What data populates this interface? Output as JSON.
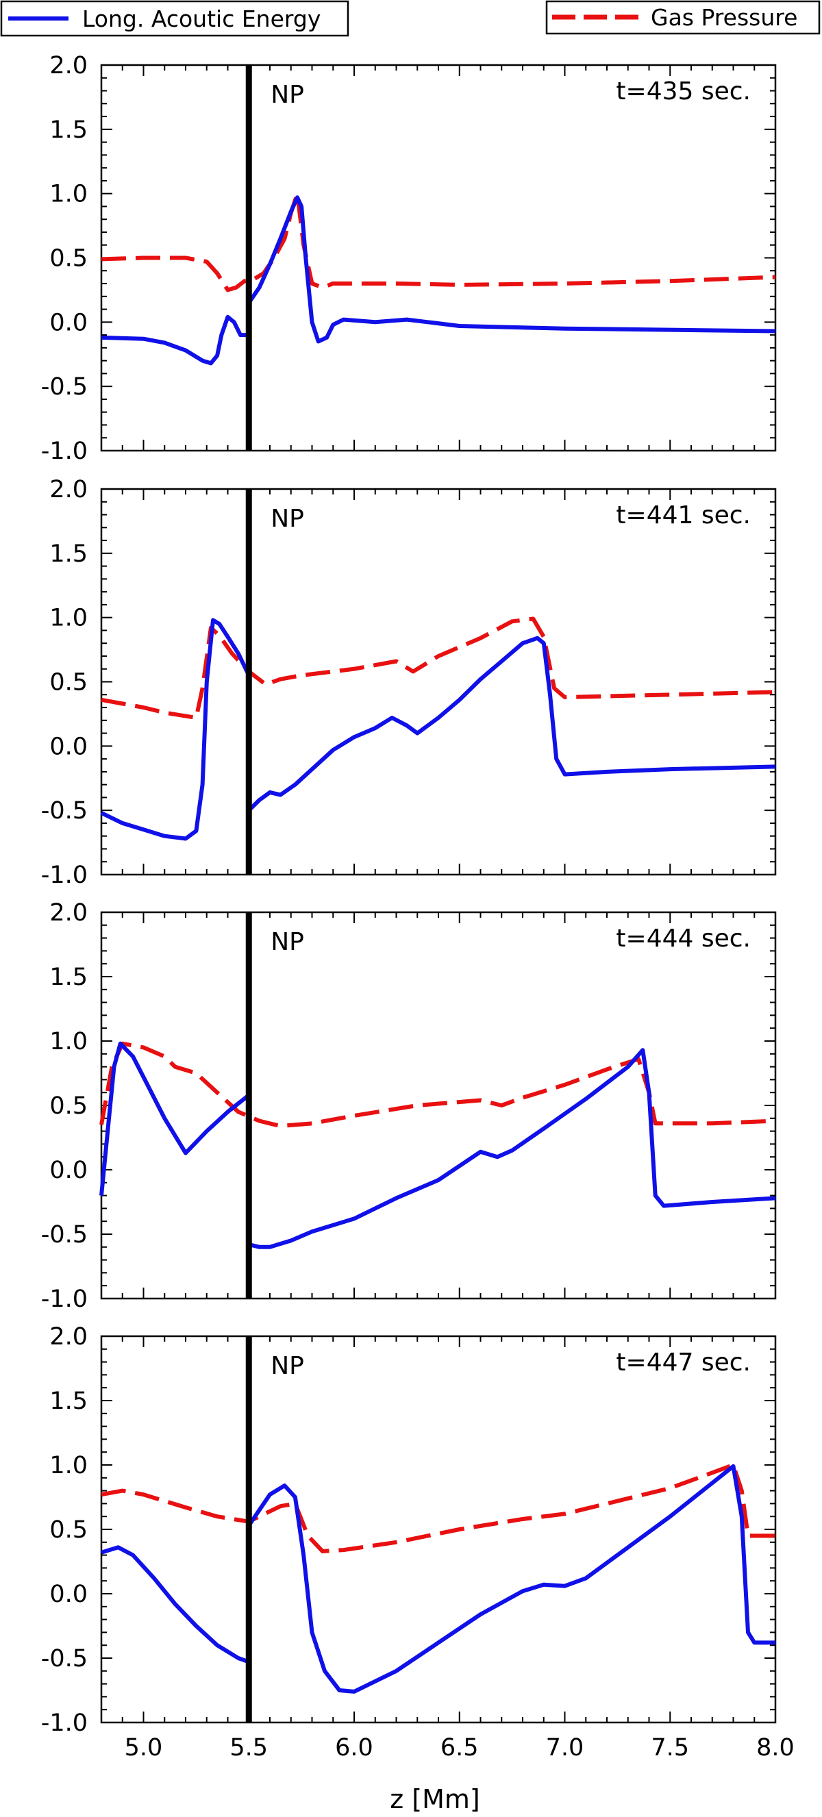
{
  "legend": {
    "blue_label": "Long. Acoutic Energy",
    "red_label": "Gas Pressure"
  },
  "xlabel": "z [Mm]",
  "colors": {
    "energy": "#1010e8",
    "pressure": "#e81010",
    "marker": "#000000"
  },
  "chart_data": [
    {
      "type": "line",
      "time_label": "t=435 sec.",
      "marker_label": "NP",
      "marker_x": 5.5,
      "xlim": [
        4.8,
        8.0
      ],
      "ylim": [
        -1.0,
        2.0
      ],
      "x_ticks": [
        5.0,
        5.5,
        6.0,
        6.5,
        7.0,
        7.5,
        8.0
      ],
      "y_ticks": [
        -1.0,
        -0.5,
        0.0,
        0.5,
        1.0,
        1.5,
        2.0
      ],
      "series": [
        {
          "name": "Long. Acoutic Energy",
          "style": "solid",
          "points": [
            [
              4.8,
              -0.12
            ],
            [
              5.0,
              -0.13
            ],
            [
              5.1,
              -0.16
            ],
            [
              5.2,
              -0.22
            ],
            [
              5.28,
              -0.3
            ],
            [
              5.32,
              -0.32
            ],
            [
              5.35,
              -0.26
            ],
            [
              5.37,
              -0.1
            ],
            [
              5.4,
              0.04
            ],
            [
              5.43,
              0.0
            ],
            [
              5.46,
              -0.1
            ],
            [
              5.5,
              -0.1
            ],
            [
              5.5,
              0.15
            ],
            [
              5.55,
              0.27
            ],
            [
              5.6,
              0.45
            ],
            [
              5.65,
              0.65
            ],
            [
              5.7,
              0.86
            ],
            [
              5.73,
              0.97
            ],
            [
              5.75,
              0.9
            ],
            [
              5.77,
              0.5
            ],
            [
              5.8,
              0.0
            ],
            [
              5.83,
              -0.15
            ],
            [
              5.87,
              -0.12
            ],
            [
              5.9,
              -0.02
            ],
            [
              5.95,
              0.02
            ],
            [
              6.1,
              0.0
            ],
            [
              6.25,
              0.02
            ],
            [
              6.35,
              0.0
            ],
            [
              6.5,
              -0.03
            ],
            [
              7.0,
              -0.05
            ],
            [
              7.5,
              -0.06
            ],
            [
              8.0,
              -0.07
            ]
          ]
        },
        {
          "name": "Gas Pressure",
          "style": "dashed",
          "points": [
            [
              4.8,
              0.49
            ],
            [
              5.0,
              0.5
            ],
            [
              5.2,
              0.5
            ],
            [
              5.3,
              0.47
            ],
            [
              5.35,
              0.38
            ],
            [
              5.4,
              0.25
            ],
            [
              5.44,
              0.27
            ],
            [
              5.48,
              0.32
            ],
            [
              5.52,
              0.33
            ],
            [
              5.57,
              0.38
            ],
            [
              5.62,
              0.5
            ],
            [
              5.67,
              0.65
            ],
            [
              5.7,
              0.85
            ],
            [
              5.73,
              1.0
            ],
            [
              5.76,
              0.6
            ],
            [
              5.8,
              0.3
            ],
            [
              5.85,
              0.27
            ],
            [
              5.9,
              0.3
            ],
            [
              6.2,
              0.3
            ],
            [
              6.5,
              0.29
            ],
            [
              7.0,
              0.3
            ],
            [
              7.5,
              0.32
            ],
            [
              8.0,
              0.35
            ]
          ]
        }
      ]
    },
    {
      "type": "line",
      "time_label": "t=441 sec.",
      "marker_label": "NP",
      "marker_x": 5.5,
      "xlim": [
        4.8,
        8.0
      ],
      "ylim": [
        -1.0,
        2.0
      ],
      "x_ticks": [
        5.0,
        5.5,
        6.0,
        6.5,
        7.0,
        7.5,
        8.0
      ],
      "y_ticks": [
        -1.0,
        -0.5,
        0.0,
        0.5,
        1.0,
        1.5,
        2.0
      ],
      "series": [
        {
          "name": "Long. Acoutic Energy",
          "style": "solid",
          "points": [
            [
              4.8,
              -0.52
            ],
            [
              4.9,
              -0.6
            ],
            [
              5.0,
              -0.65
            ],
            [
              5.1,
              -0.7
            ],
            [
              5.2,
              -0.72
            ],
            [
              5.25,
              -0.66
            ],
            [
              5.28,
              -0.3
            ],
            [
              5.3,
              0.5
            ],
            [
              5.33,
              0.98
            ],
            [
              5.36,
              0.95
            ],
            [
              5.4,
              0.85
            ],
            [
              5.45,
              0.72
            ],
            [
              5.5,
              0.55
            ],
            [
              5.5,
              -0.5
            ],
            [
              5.55,
              -0.42
            ],
            [
              5.6,
              -0.36
            ],
            [
              5.65,
              -0.38
            ],
            [
              5.72,
              -0.3
            ],
            [
              5.8,
              -0.18
            ],
            [
              5.9,
              -0.03
            ],
            [
              6.0,
              0.07
            ],
            [
              6.1,
              0.14
            ],
            [
              6.18,
              0.22
            ],
            [
              6.25,
              0.16
            ],
            [
              6.3,
              0.1
            ],
            [
              6.4,
              0.22
            ],
            [
              6.5,
              0.36
            ],
            [
              6.6,
              0.52
            ],
            [
              6.7,
              0.66
            ],
            [
              6.8,
              0.8
            ],
            [
              6.87,
              0.84
            ],
            [
              6.9,
              0.8
            ],
            [
              6.93,
              0.4
            ],
            [
              6.96,
              -0.1
            ],
            [
              7.0,
              -0.22
            ],
            [
              7.2,
              -0.2
            ],
            [
              7.5,
              -0.18
            ],
            [
              8.0,
              -0.16
            ]
          ]
        },
        {
          "name": "Gas Pressure",
          "style": "dashed",
          "points": [
            [
              4.8,
              0.36
            ],
            [
              5.0,
              0.3
            ],
            [
              5.1,
              0.26
            ],
            [
              5.25,
              0.22
            ],
            [
              5.28,
              0.45
            ],
            [
              5.32,
              0.92
            ],
            [
              5.36,
              0.86
            ],
            [
              5.42,
              0.72
            ],
            [
              5.5,
              0.58
            ],
            [
              5.58,
              0.48
            ],
            [
              5.65,
              0.52
            ],
            [
              5.75,
              0.55
            ],
            [
              6.0,
              0.6
            ],
            [
              6.2,
              0.66
            ],
            [
              6.28,
              0.58
            ],
            [
              6.4,
              0.7
            ],
            [
              6.6,
              0.84
            ],
            [
              6.75,
              0.97
            ],
            [
              6.85,
              0.99
            ],
            [
              6.9,
              0.85
            ],
            [
              6.95,
              0.45
            ],
            [
              7.0,
              0.38
            ],
            [
              7.5,
              0.4
            ],
            [
              8.0,
              0.42
            ]
          ]
        }
      ]
    },
    {
      "type": "line",
      "time_label": "t=444 sec.",
      "marker_label": "NP",
      "marker_x": 5.5,
      "xlim": [
        4.8,
        8.0
      ],
      "ylim": [
        -1.0,
        2.0
      ],
      "x_ticks": [
        5.0,
        5.5,
        6.0,
        6.5,
        7.0,
        7.5,
        8.0
      ],
      "y_ticks": [
        -1.0,
        -0.5,
        0.0,
        0.5,
        1.0,
        1.5,
        2.0
      ],
      "series": [
        {
          "name": "Long. Acoutic Energy",
          "style": "solid",
          "points": [
            [
              4.8,
              -0.2
            ],
            [
              4.83,
              0.3
            ],
            [
              4.86,
              0.8
            ],
            [
              4.89,
              0.98
            ],
            [
              4.95,
              0.88
            ],
            [
              5.0,
              0.72
            ],
            [
              5.1,
              0.4
            ],
            [
              5.2,
              0.13
            ],
            [
              5.3,
              0.3
            ],
            [
              5.4,
              0.45
            ],
            [
              5.5,
              0.58
            ],
            [
              5.5,
              -0.58
            ],
            [
              5.55,
              -0.6
            ],
            [
              5.6,
              -0.6
            ],
            [
              5.7,
              -0.55
            ],
            [
              5.8,
              -0.48
            ],
            [
              6.0,
              -0.38
            ],
            [
              6.2,
              -0.22
            ],
            [
              6.4,
              -0.08
            ],
            [
              6.6,
              0.14
            ],
            [
              6.68,
              0.1
            ],
            [
              6.75,
              0.15
            ],
            [
              6.9,
              0.32
            ],
            [
              7.1,
              0.55
            ],
            [
              7.3,
              0.8
            ],
            [
              7.37,
              0.93
            ],
            [
              7.4,
              0.6
            ],
            [
              7.43,
              -0.2
            ],
            [
              7.47,
              -0.28
            ],
            [
              7.7,
              -0.25
            ],
            [
              8.0,
              -0.22
            ]
          ]
        },
        {
          "name": "Gas Pressure",
          "style": "dashed",
          "points": [
            [
              4.8,
              0.35
            ],
            [
              4.85,
              0.8
            ],
            [
              4.9,
              0.98
            ],
            [
              5.0,
              0.95
            ],
            [
              5.1,
              0.88
            ],
            [
              5.15,
              0.8
            ],
            [
              5.25,
              0.75
            ],
            [
              5.35,
              0.6
            ],
            [
              5.45,
              0.45
            ],
            [
              5.55,
              0.38
            ],
            [
              5.65,
              0.34
            ],
            [
              5.8,
              0.36
            ],
            [
              6.0,
              0.42
            ],
            [
              6.3,
              0.5
            ],
            [
              6.6,
              0.54
            ],
            [
              6.7,
              0.5
            ],
            [
              6.8,
              0.56
            ],
            [
              7.0,
              0.66
            ],
            [
              7.2,
              0.78
            ],
            [
              7.35,
              0.86
            ],
            [
              7.4,
              0.6
            ],
            [
              7.43,
              0.36
            ],
            [
              7.7,
              0.36
            ],
            [
              8.0,
              0.38
            ]
          ]
        }
      ]
    },
    {
      "type": "line",
      "time_label": "t=447 sec.",
      "marker_label": "NP",
      "marker_x": 5.5,
      "xlim": [
        4.8,
        8.0
      ],
      "ylim": [
        -1.0,
        2.0
      ],
      "x_ticks": [
        5.0,
        5.5,
        6.0,
        6.5,
        7.0,
        7.5,
        8.0
      ],
      "x_tick_labels": [
        "5.0",
        "5.5",
        "6.0",
        "6.5",
        "7.0",
        "7.5",
        "8.0"
      ],
      "y_ticks": [
        -1.0,
        -0.5,
        0.0,
        0.5,
        1.0,
        1.5,
        2.0
      ],
      "series": [
        {
          "name": "Long. Acoutic Energy",
          "style": "solid",
          "points": [
            [
              4.8,
              0.32
            ],
            [
              4.88,
              0.36
            ],
            [
              4.95,
              0.3
            ],
            [
              5.05,
              0.12
            ],
            [
              5.15,
              -0.08
            ],
            [
              5.25,
              -0.25
            ],
            [
              5.35,
              -0.4
            ],
            [
              5.45,
              -0.5
            ],
            [
              5.5,
              -0.53
            ],
            [
              5.5,
              0.53
            ],
            [
              5.55,
              0.65
            ],
            [
              5.6,
              0.77
            ],
            [
              5.67,
              0.84
            ],
            [
              5.72,
              0.75
            ],
            [
              5.76,
              0.3
            ],
            [
              5.8,
              -0.3
            ],
            [
              5.86,
              -0.6
            ],
            [
              5.93,
              -0.75
            ],
            [
              6.0,
              -0.76
            ],
            [
              6.2,
              -0.6
            ],
            [
              6.4,
              -0.38
            ],
            [
              6.6,
              -0.16
            ],
            [
              6.8,
              0.02
            ],
            [
              6.9,
              0.07
            ],
            [
              7.0,
              0.06
            ],
            [
              7.1,
              0.12
            ],
            [
              7.3,
              0.36
            ],
            [
              7.5,
              0.6
            ],
            [
              7.7,
              0.86
            ],
            [
              7.8,
              0.99
            ],
            [
              7.84,
              0.6
            ],
            [
              7.87,
              -0.3
            ],
            [
              7.9,
              -0.38
            ],
            [
              8.0,
              -0.38
            ]
          ]
        },
        {
          "name": "Gas Pressure",
          "style": "dashed",
          "points": [
            [
              4.8,
              0.77
            ],
            [
              4.9,
              0.8
            ],
            [
              5.0,
              0.77
            ],
            [
              5.1,
              0.72
            ],
            [
              5.2,
              0.67
            ],
            [
              5.35,
              0.6
            ],
            [
              5.5,
              0.56
            ],
            [
              5.55,
              0.6
            ],
            [
              5.65,
              0.68
            ],
            [
              5.72,
              0.7
            ],
            [
              5.78,
              0.45
            ],
            [
              5.85,
              0.33
            ],
            [
              5.95,
              0.34
            ],
            [
              6.2,
              0.4
            ],
            [
              6.5,
              0.5
            ],
            [
              6.8,
              0.58
            ],
            [
              7.0,
              0.62
            ],
            [
              7.2,
              0.7
            ],
            [
              7.5,
              0.82
            ],
            [
              7.7,
              0.94
            ],
            [
              7.8,
              1.0
            ],
            [
              7.84,
              0.8
            ],
            [
              7.87,
              0.45
            ],
            [
              8.0,
              0.45
            ]
          ]
        }
      ]
    }
  ]
}
